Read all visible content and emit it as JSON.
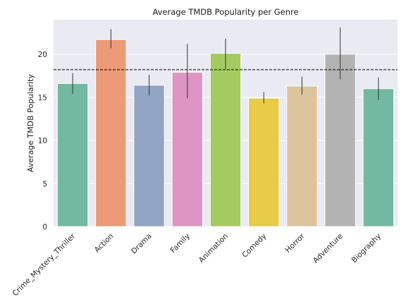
{
  "chart_data": {
    "type": "bar",
    "title": "Average TMDB Popularity per Genre",
    "xlabel": "",
    "ylabel": "Average TMDB Popularity",
    "ylim": [
      0,
      24
    ],
    "yticks": [
      0,
      5,
      10,
      15,
      20
    ],
    "grid": true,
    "categories": [
      "Crime_Mystery_Thriller",
      "Action",
      "Drama",
      "Family",
      "Animation",
      "Comedy",
      "Horror",
      "Adventure",
      "Biography"
    ],
    "values": [
      16.6,
      21.7,
      16.4,
      17.9,
      20.1,
      14.9,
      16.3,
      20.0,
      16.0
    ],
    "error_low": [
      15.4,
      20.7,
      15.2,
      14.9,
      18.3,
      14.3,
      15.3,
      17.1,
      14.7
    ],
    "error_high": [
      17.8,
      22.9,
      17.6,
      21.2,
      21.8,
      15.6,
      17.4,
      23.1,
      17.3
    ],
    "reference_line": 18.2,
    "colors": [
      "#73b8a0",
      "#ec9a77",
      "#93a5c5",
      "#de95c1",
      "#a4cb62",
      "#e8cb47",
      "#dcc39c",
      "#b3b3b3",
      "#73b8a0"
    ]
  }
}
